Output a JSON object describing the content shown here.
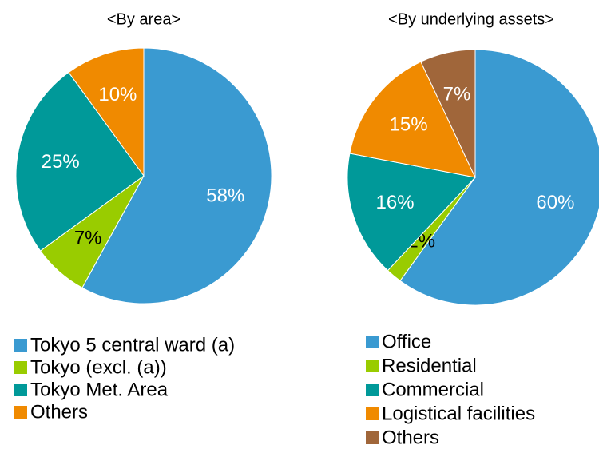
{
  "chart_data": [
    {
      "type": "pie",
      "title": "<By area>",
      "labels": [
        "Tokyo 5 central ward (a)",
        "Tokyo (excl. (a))",
        "Tokyo Met. Area",
        "Others"
      ],
      "values": [
        58,
        7,
        25,
        10
      ],
      "value_labels": [
        "58%",
        "7%",
        "25%",
        "10%"
      ],
      "colors": [
        "#3a9ad1",
        "#99cc00",
        "#009999",
        "#f08a00"
      ],
      "label_colors": [
        "#ffffff",
        "#000000",
        "#ffffff",
        "#ffffff"
      ]
    },
    {
      "type": "pie",
      "title": "<By underlying assets>",
      "labels": [
        "Office",
        "Residential",
        "Commercial",
        "Logistical facilities",
        "Others"
      ],
      "values": [
        60,
        2,
        16,
        15,
        7
      ],
      "value_labels": [
        "60%",
        "2%",
        "16%",
        "15%",
        "7%"
      ],
      "colors": [
        "#3a9ad1",
        "#99cc00",
        "#009999",
        "#f08a00",
        "#a0663a"
      ],
      "label_colors": [
        "#ffffff",
        "#000000",
        "#ffffff",
        "#ffffff",
        "#ffffff"
      ]
    }
  ]
}
